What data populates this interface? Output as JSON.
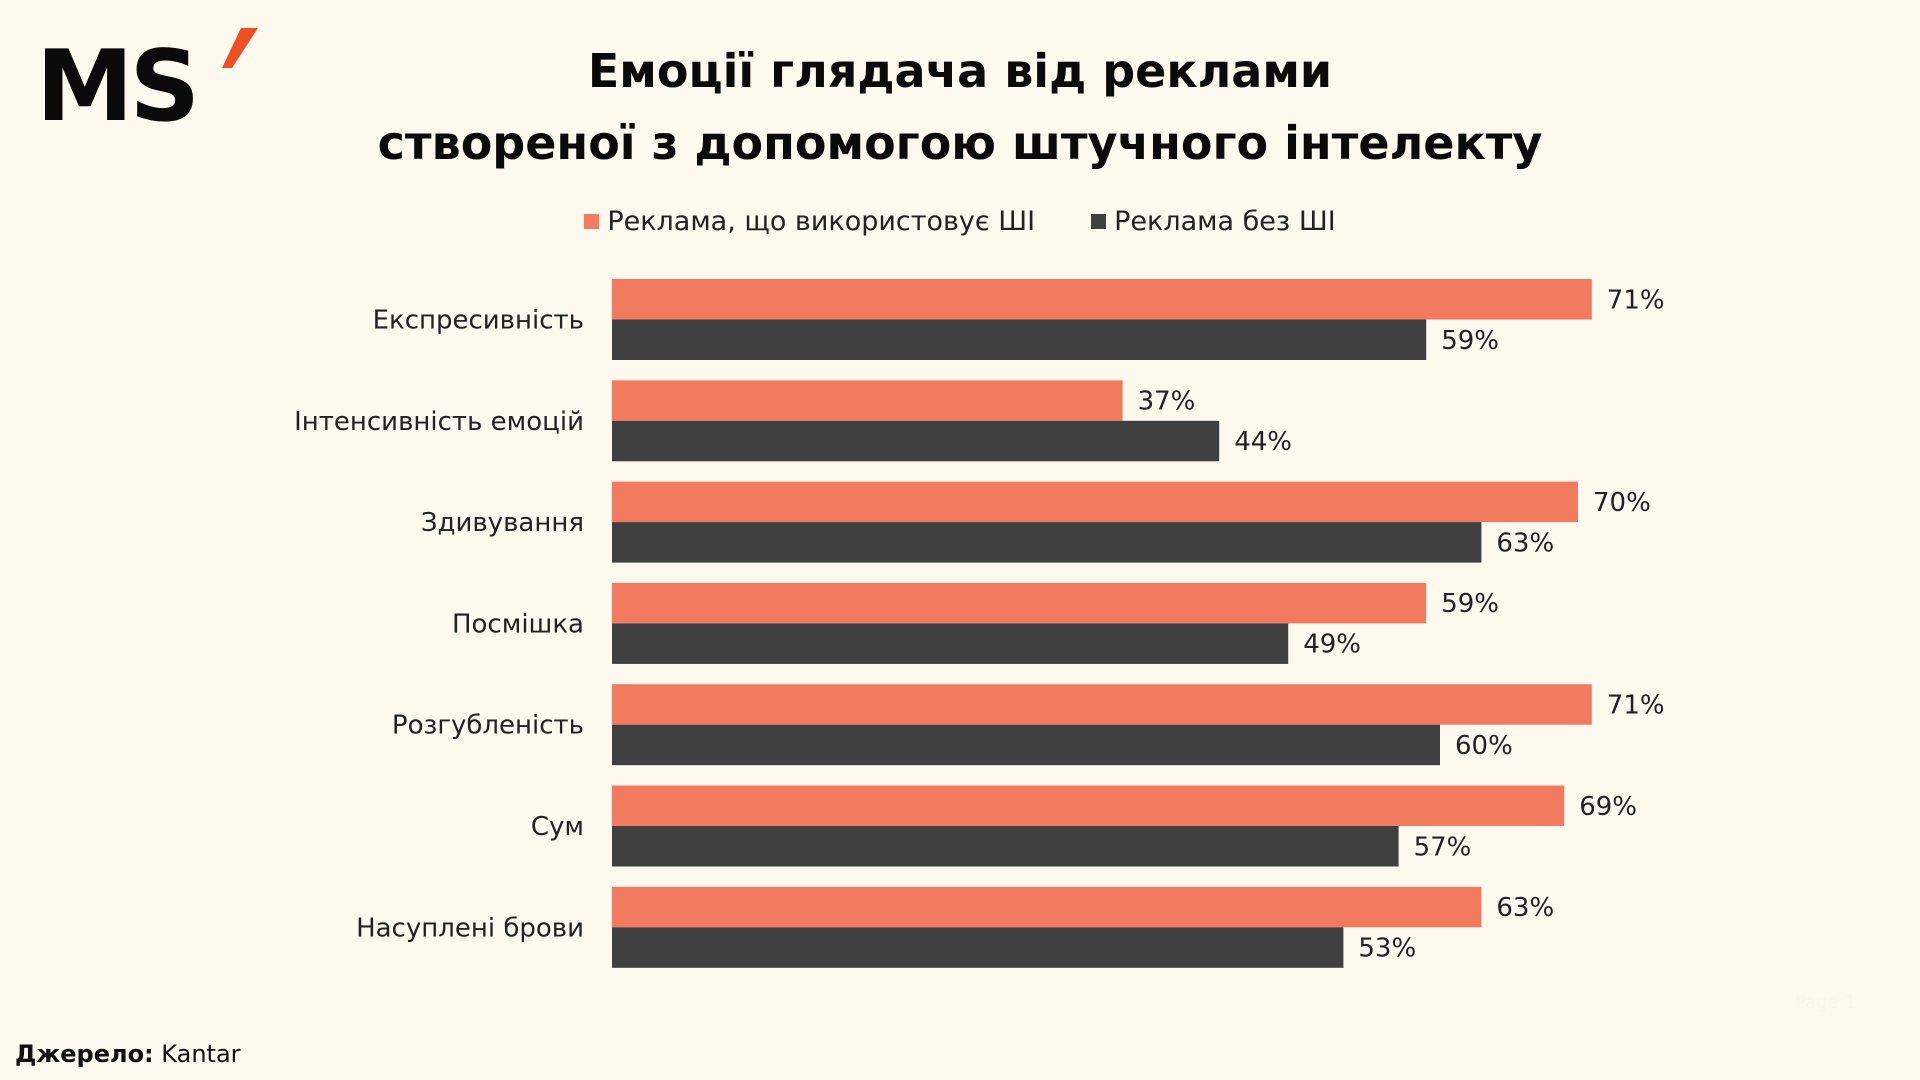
{
  "logo": {
    "text": "MS",
    "accent_color": "#F04E23"
  },
  "title": {
    "line1": "Емоції глядача від реклами",
    "line2": "створеної з допомогою штучного інтелекту"
  },
  "source": {
    "label": "Джерело:",
    "value": "Kantar"
  },
  "page_label": "Page 1",
  "chart_data": {
    "type": "bar",
    "orientation": "horizontal",
    "categories": [
      "Експресивність",
      "Інтенсивність емоцій",
      "Здивування",
      "Посмішка",
      "Розгубленість",
      "Сум",
      "Насуплені брови"
    ],
    "series": [
      {
        "name": "Реклама, що використовує ШІ",
        "color": "#F27A5E",
        "values": [
          71,
          37,
          70,
          59,
          71,
          69,
          63
        ],
        "labels": [
          "71%",
          "37%",
          "70%",
          "59%",
          "71%",
          "69%",
          "63%"
        ]
      },
      {
        "name": "Реклама без ШІ",
        "color": "#404040",
        "values": [
          59,
          44,
          63,
          49,
          60,
          57,
          53
        ],
        "labels": [
          "59%",
          "44%",
          "63%",
          "49%",
          "60%",
          "57%",
          "53%"
        ]
      }
    ],
    "unit": "%",
    "legend": "top",
    "grid": false,
    "xlim": [
      0,
      100
    ]
  }
}
